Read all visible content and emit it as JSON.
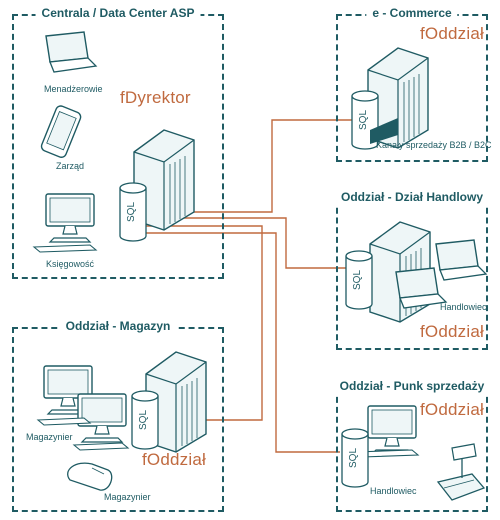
{
  "colors": {
    "frame": "#1f5b63",
    "link": "#c06a3f",
    "fill": "#eef6f7"
  },
  "central": {
    "title": "Centrala / Data Center ASP",
    "app": "fDyrektor",
    "labels": {
      "managers": "Menadżerowie",
      "board": "Zarząd",
      "accounting": "Księgowość"
    }
  },
  "ecommerce": {
    "title": "e - Commerce",
    "app": "fOddział",
    "channels": "Kanały sprzedaży B2B / B2C"
  },
  "sales_dept": {
    "title": "Oddział - Dział Handlowy",
    "app": "fOddział",
    "salesman": "Handlowiec"
  },
  "warehouse": {
    "title": "Oddział - Magazyn",
    "app": "fOddział",
    "clerk1": "Magazynier",
    "clerk2": "Magazynier"
  },
  "pos": {
    "title": "Oddział - Punk sprzedaży",
    "app": "fOddział",
    "salesman": "Handlowiec"
  },
  "db_label": "SQL"
}
